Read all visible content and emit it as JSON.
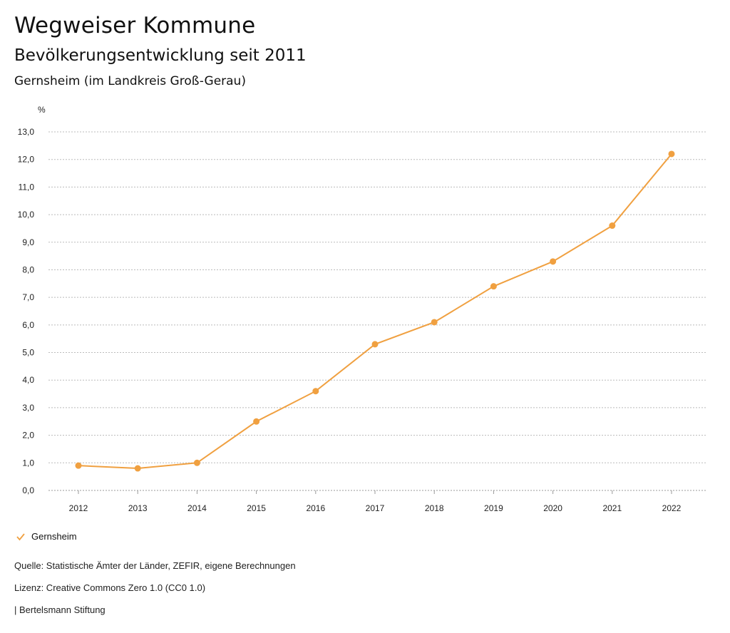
{
  "header": {
    "title": "Wegweiser Kommune",
    "subtitle": "Bevölkerungsentwicklung seit 2011",
    "region": "Gernsheim (im Landkreis Groß-Gerau)"
  },
  "chart_data": {
    "type": "line",
    "unit_label": "%",
    "x": [
      "2012",
      "2013",
      "2014",
      "2015",
      "2016",
      "2017",
      "2018",
      "2019",
      "2020",
      "2021",
      "2022"
    ],
    "series": [
      {
        "name": "Gernsheim",
        "color": "#f0a040",
        "values": [
          0.9,
          0.8,
          1.0,
          2.5,
          3.6,
          5.3,
          6.1,
          7.4,
          8.3,
          9.6,
          12.2
        ]
      }
    ],
    "ylim": [
      0,
      13
    ],
    "yticks": [
      "0,0",
      "1,0",
      "2,0",
      "3,0",
      "4,0",
      "5,0",
      "6,0",
      "7,0",
      "8,0",
      "9,0",
      "10,0",
      "11,0",
      "12,0",
      "13,0"
    ],
    "grid": true,
    "legend_position": "bottom-left"
  },
  "legend": {
    "label": "Gernsheim",
    "icon": "check-icon"
  },
  "footer": {
    "source": "Quelle: Statistische Ämter der Länder, ZEFIR, eigene Berechnungen",
    "license": "Lizenz: Creative Commons Zero 1.0 (CC0 1.0)",
    "publisher": "| Bertelsmann Stiftung"
  }
}
